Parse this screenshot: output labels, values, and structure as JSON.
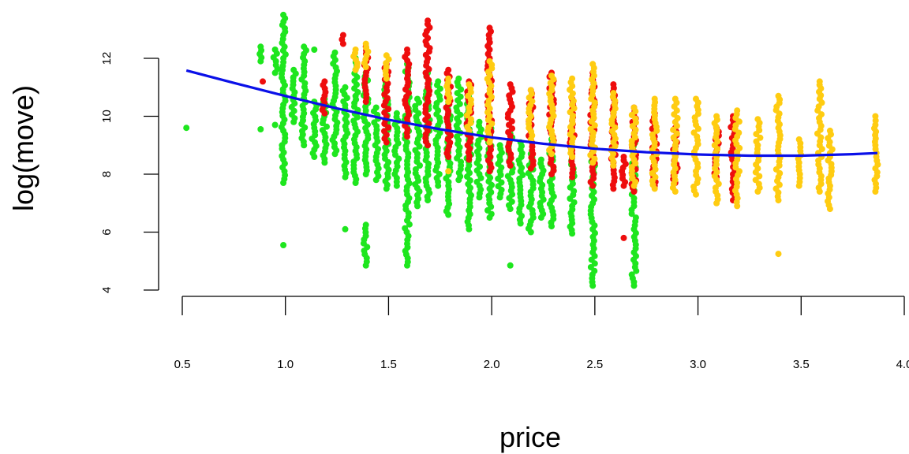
{
  "chart_data": {
    "type": "scatter",
    "title": "",
    "xlabel": "price",
    "ylabel": "log(move)",
    "xlim": [
      0.5,
      4.0
    ],
    "ylim": [
      4,
      12.5
    ],
    "x_ticks": [
      "0.5",
      "1.0",
      "1.5",
      "2.0",
      "2.5",
      "3.0",
      "3.5",
      "4.0"
    ],
    "x_tick_values": [
      0.5,
      1.0,
      1.5,
      2.0,
      2.5,
      3.0,
      3.5,
      4.0
    ],
    "y_ticks": [
      "4",
      "6",
      "8",
      "10",
      "12"
    ],
    "y_tick_values": [
      4,
      6,
      8,
      10,
      12
    ],
    "grid": false,
    "legend": "none",
    "colors": {
      "green": "#1EE61E",
      "red": "#EE0D0D",
      "yellow": "#FFCC11",
      "curve": "#0A10E8"
    },
    "series": [
      {
        "color": "green",
        "x_range": [
          0.5,
          2.7
        ],
        "columns": [
          {
            "x": 0.52,
            "y": [
              9.6
            ]
          },
          {
            "x": 0.88,
            "y": [
              9.55,
              11.9,
              12.4
            ]
          },
          {
            "x": 0.95,
            "y": [
              9.7,
              11.5,
              12.3
            ]
          },
          {
            "x": 0.99,
            "y": [
              5.55,
              7.7,
              8.5,
              9.5,
              10.4,
              11.2,
              12.0,
              12.8,
              13.5
            ]
          },
          {
            "x": 1.04,
            "y": [
              9.8,
              10.7,
              11.6
            ]
          },
          {
            "x": 1.09,
            "y": [
              9.0,
              10.1,
              11.4,
              12.4
            ]
          },
          {
            "x": 1.14,
            "y": [
              8.6,
              9.6,
              10.5,
              12.3
            ]
          },
          {
            "x": 1.19,
            "y": [
              8.4,
              9.4,
              10.6
            ]
          },
          {
            "x": 1.24,
            "y": [
              8.7,
              9.9,
              11.3,
              12.2
            ]
          },
          {
            "x": 1.29,
            "y": [
              6.1,
              7.9,
              8.8,
              9.9,
              11.0
            ]
          },
          {
            "x": 1.34,
            "y": [
              7.7,
              8.8,
              9.6,
              10.7,
              12.0
            ]
          },
          {
            "x": 1.39,
            "y": [
              4.85,
              6.25,
              8.0,
              9.1,
              10.2,
              11.5
            ]
          },
          {
            "x": 1.44,
            "y": [
              7.8,
              8.6,
              9.4,
              10.3
            ]
          },
          {
            "x": 1.49,
            "y": [
              7.5,
              8.8,
              9.9,
              11.3
            ]
          },
          {
            "x": 1.54,
            "y": [
              7.6,
              8.4,
              9.2,
              10.1
            ]
          },
          {
            "x": 1.59,
            "y": [
              4.85,
              5.6,
              6.4,
              7.3,
              8.2,
              9.1,
              10.4,
              11.8
            ]
          },
          {
            "x": 1.64,
            "y": [
              6.9,
              7.9,
              8.7,
              9.6,
              10.6
            ]
          },
          {
            "x": 1.69,
            "y": [
              7.1,
              8.1,
              9.0,
              10.0,
              11.5
            ]
          },
          {
            "x": 1.74,
            "y": [
              7.6,
              8.4,
              9.3,
              10.2,
              11.2
            ]
          },
          {
            "x": 1.79,
            "y": [
              6.6,
              7.6,
              8.5,
              9.5,
              10.5
            ]
          },
          {
            "x": 1.84,
            "y": [
              7.8,
              8.8,
              9.8,
              11.3
            ]
          },
          {
            "x": 1.89,
            "y": [
              6.1,
              7.4,
              8.3,
              9.3,
              10.8
            ]
          },
          {
            "x": 1.94,
            "y": [
              7.2,
              8.0,
              8.9,
              9.8
            ]
          },
          {
            "x": 1.99,
            "y": [
              6.5,
              7.5,
              8.5,
              9.7,
              11.3
            ]
          },
          {
            "x": 2.04,
            "y": [
              7.2,
              8.1,
              9.0
            ]
          },
          {
            "x": 2.09,
            "y": [
              4.85,
              6.8,
              7.8,
              8.6,
              9.4
            ]
          },
          {
            "x": 2.14,
            "y": [
              6.3,
              7.2,
              8.1,
              9.1
            ]
          },
          {
            "x": 2.19,
            "y": [
              6.0,
              7.0,
              7.9,
              8.7
            ]
          },
          {
            "x": 2.24,
            "y": [
              6.5,
              7.5,
              8.5
            ]
          },
          {
            "x": 2.29,
            "y": [
              6.2,
              7.1,
              8.0,
              9.2
            ]
          },
          {
            "x": 2.39,
            "y": [
              5.95,
              6.9,
              7.8,
              8.6
            ]
          },
          {
            "x": 2.49,
            "y": [
              4.15,
              5.3,
              6.1,
              7.0,
              7.9,
              8.7
            ]
          },
          {
            "x": 2.69,
            "y": [
              4.15,
              5.3,
              6.1,
              6.9,
              7.7,
              8.5,
              9.2
            ]
          }
        ]
      },
      {
        "color": "red",
        "x_range": [
          0.9,
          3.2
        ],
        "columns": [
          {
            "x": 0.89,
            "y": [
              11.2
            ]
          },
          {
            "x": 1.19,
            "y": [
              10.1,
              11.2
            ]
          },
          {
            "x": 1.28,
            "y": [
              12.5,
              12.8
            ]
          },
          {
            "x": 1.39,
            "y": [
              10.5,
              11.4,
              12.4
            ]
          },
          {
            "x": 1.49,
            "y": [
              9.1,
              10.0,
              11.0,
              11.8
            ]
          },
          {
            "x": 1.59,
            "y": [
              9.3,
              10.3,
              11.3,
              12.3
            ]
          },
          {
            "x": 1.69,
            "y": [
              9.0,
              10.0,
              11.0,
              12.0,
              12.7,
              13.3
            ]
          },
          {
            "x": 1.79,
            "y": [
              8.6,
              9.7,
              10.9,
              11.6
            ]
          },
          {
            "x": 1.89,
            "y": [
              8.5,
              9.5,
              10.5,
              11.2
            ]
          },
          {
            "x": 1.99,
            "y": [
              8.1,
              9.1,
              10.1,
              11.1,
              12.0,
              12.3,
              13.05
            ]
          },
          {
            "x": 2.09,
            "y": [
              8.3,
              9.2,
              10.2,
              11.1
            ]
          },
          {
            "x": 2.19,
            "y": [
              8.2,
              9.2,
              10.2,
              10.9
            ]
          },
          {
            "x": 2.29,
            "y": [
              8.0,
              8.9,
              9.8,
              10.7,
              11.5
            ]
          },
          {
            "x": 2.39,
            "y": [
              7.9,
              8.7,
              9.6,
              10.6
            ]
          },
          {
            "x": 2.49,
            "y": [
              7.6,
              8.5,
              9.4,
              10.3,
              11.5
            ]
          },
          {
            "x": 2.59,
            "y": [
              7.5,
              8.4,
              9.2,
              10.1,
              11.1
            ]
          },
          {
            "x": 2.64,
            "y": [
              5.8,
              7.6,
              8.6
            ]
          },
          {
            "x": 2.69,
            "y": [
              7.4,
              8.3,
              9.3,
              10.3
            ]
          },
          {
            "x": 2.79,
            "y": [
              7.6,
              8.4,
              9.3,
              10.1
            ]
          },
          {
            "x": 2.89,
            "y": [
              7.7,
              8.6,
              9.6
            ]
          },
          {
            "x": 3.09,
            "y": [
              7.9,
              8.8,
              9.6
            ]
          },
          {
            "x": 3.17,
            "y": [
              7.1,
              8.0,
              9.0,
              10.0
            ]
          }
        ]
      },
      {
        "color": "yellow",
        "x_range": [
          1.3,
          3.9
        ],
        "columns": [
          {
            "x": 1.34,
            "y": [
              11.6,
              12.3
            ]
          },
          {
            "x": 1.39,
            "y": [
              11.7,
              12.5
            ]
          },
          {
            "x": 1.49,
            "y": [
              11.3,
              12.1
            ]
          },
          {
            "x": 1.79,
            "y": [
              8.1,
              10.5,
              11.3
            ]
          },
          {
            "x": 1.89,
            "y": [
              9.5,
              10.3,
              11.1
            ]
          },
          {
            "x": 1.99,
            "y": [
              9.1,
              10.0,
              10.8,
              11.9
            ]
          },
          {
            "x": 2.19,
            "y": [
              9.2,
              10.0,
              10.9
            ]
          },
          {
            "x": 2.29,
            "y": [
              8.7,
              9.5,
              10.4,
              11.4
            ]
          },
          {
            "x": 2.39,
            "y": [
              8.6,
              9.5,
              10.4,
              11.3
            ]
          },
          {
            "x": 2.49,
            "y": [
              8.4,
              9.3,
              10.2,
              11.0,
              11.8
            ]
          },
          {
            "x": 2.59,
            "y": [
              8.3,
              9.1,
              10.0,
              10.8
            ]
          },
          {
            "x": 2.69,
            "y": [
              7.6,
              8.5,
              9.4,
              10.3
            ]
          },
          {
            "x": 2.79,
            "y": [
              7.5,
              8.3,
              9.1,
              9.9,
              10.6
            ]
          },
          {
            "x": 2.89,
            "y": [
              7.4,
              8.2,
              9.0,
              9.8,
              10.6
            ]
          },
          {
            "x": 2.99,
            "y": [
              7.3,
              8.1,
              8.9,
              9.7,
              10.6
            ]
          },
          {
            "x": 3.09,
            "y": [
              7.0,
              7.8,
              8.6,
              9.4,
              10.0
            ]
          },
          {
            "x": 3.19,
            "y": [
              6.9,
              7.7,
              8.5,
              9.3,
              10.2
            ]
          },
          {
            "x": 3.29,
            "y": [
              7.4,
              8.2,
              9.0,
              9.9
            ]
          },
          {
            "x": 3.39,
            "y": [
              5.25,
              7.1,
              7.9,
              8.7,
              9.6,
              10.7
            ]
          },
          {
            "x": 3.49,
            "y": [
              7.6,
              8.4,
              9.2
            ]
          },
          {
            "x": 3.59,
            "y": [
              7.4,
              8.2,
              9.0,
              9.8,
              10.6,
              11.2
            ]
          },
          {
            "x": 3.64,
            "y": [
              6.8,
              7.6,
              8.6,
              9.5
            ]
          },
          {
            "x": 3.86,
            "y": [
              7.4,
              8.2,
              9.0,
              9.7,
              10.0
            ]
          }
        ]
      }
    ],
    "curve": {
      "color": "curve",
      "x": [
        0.52,
        0.75,
        1.0,
        1.25,
        1.5,
        1.75,
        2.0,
        2.25,
        2.5,
        2.75,
        3.0,
        3.25,
        3.5,
        3.75,
        3.87
      ],
      "y": [
        11.58,
        11.15,
        10.7,
        10.27,
        9.88,
        9.55,
        9.27,
        9.05,
        8.88,
        8.76,
        8.68,
        8.64,
        8.64,
        8.69,
        8.73
      ]
    }
  }
}
